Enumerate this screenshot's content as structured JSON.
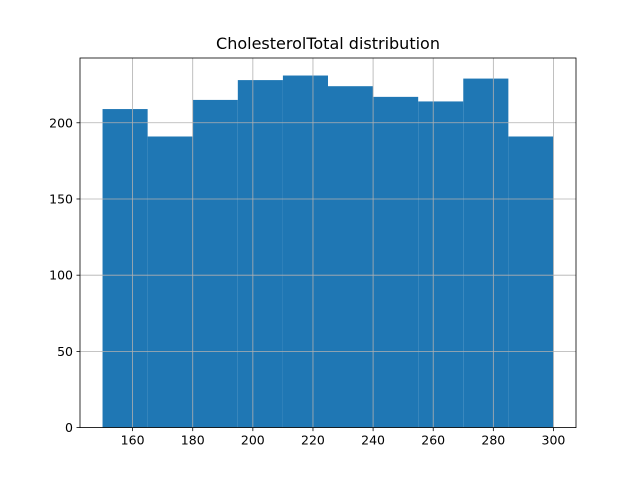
{
  "chart_data": {
    "type": "bar",
    "title": "CholesterolTotal distribution",
    "xlabel": "",
    "ylabel": "",
    "bin_edges": [
      150,
      165,
      180,
      195,
      210,
      225,
      240,
      255,
      270,
      285,
      300
    ],
    "values": [
      209,
      191,
      215,
      228,
      231,
      224,
      217,
      214,
      229,
      191
    ],
    "xlim": [
      142.5,
      307.5
    ],
    "ylim": [
      0,
      242.5
    ],
    "xticks": [
      160,
      180,
      200,
      220,
      240,
      260,
      280,
      300
    ],
    "yticks": [
      0,
      50,
      100,
      150,
      200
    ],
    "grid": true,
    "bar_color": "#1f77b4"
  }
}
